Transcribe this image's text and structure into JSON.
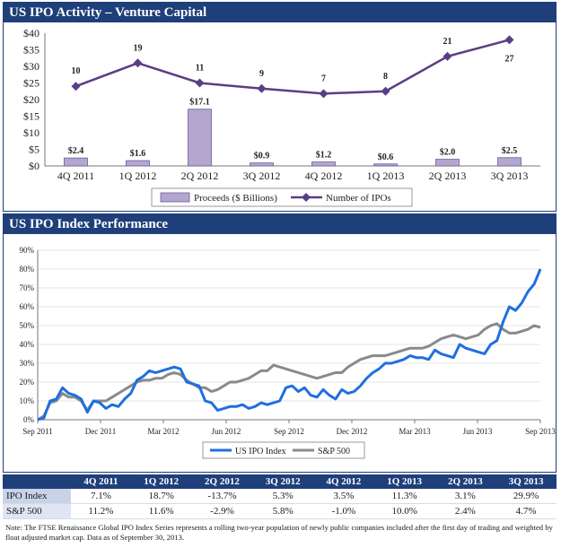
{
  "panels": {
    "activity_title": "US IPO Activity – Venture Capital",
    "index_title": "US IPO Index Performance"
  },
  "chart_data": [
    {
      "type": "bar",
      "categories": [
        "4Q 2011",
        "1Q 2012",
        "2Q 2012",
        "3Q 2012",
        "4Q 2012",
        "1Q 2013",
        "2Q 2013",
        "3Q 2013"
      ],
      "series": [
        {
          "name": "Proceeds ($ Billions)",
          "type": "bar",
          "values": [
            2.4,
            1.6,
            17.1,
            0.9,
            1.2,
            0.6,
            2.0,
            2.5
          ],
          "labels": [
            "$2.4",
            "$1.6",
            "$17.1",
            "$0.9",
            "$1.2",
            "$0.6",
            "$2.0",
            "$2.5"
          ]
        },
        {
          "name": "Number of IPOs",
          "type": "line",
          "values": [
            10,
            19,
            11,
            9,
            7,
            8,
            21,
            27
          ]
        }
      ],
      "line_plot_values": [
        24,
        31,
        25,
        23.3,
        21.8,
        22.5,
        33,
        38
      ],
      "yticks": [
        "$0",
        "$5",
        "$10",
        "$15",
        "$20",
        "$25",
        "$30",
        "$35",
        "$40"
      ],
      "ylim": [
        0,
        40
      ],
      "colors": {
        "bar": "#b3a6cf",
        "bar_stroke": "#6c5d96",
        "line": "#5a3e85"
      }
    },
    {
      "type": "line",
      "xticks": [
        "Sep 2011",
        "Dec 2011",
        "Mar 2012",
        "Jun 2012",
        "Sep 2012",
        "Dec 2012",
        "Mar 2013",
        "Jun 2013",
        "Sep 2013"
      ],
      "yticks": [
        "0%",
        "10%",
        "20%",
        "30%",
        "40%",
        "50%",
        "60%",
        "70%",
        "80%",
        "90%"
      ],
      "ylim": [
        0,
        90
      ],
      "series": [
        {
          "name": "US IPO Index",
          "color": "#1f6fe0",
          "values": [
            0,
            1,
            10,
            11,
            17,
            14,
            13,
            11,
            4,
            10,
            9,
            6,
            8,
            7,
            11,
            14,
            21,
            23,
            26,
            25,
            26,
            27,
            28,
            27,
            20,
            19,
            18,
            10,
            9,
            5,
            6,
            7,
            7,
            8,
            6,
            7,
            9,
            8,
            9,
            10,
            17,
            18,
            15,
            17,
            13,
            12,
            16,
            13,
            11,
            16,
            14,
            15,
            18,
            22,
            25,
            27,
            30,
            30,
            31,
            32,
            34,
            33,
            33,
            32,
            37,
            35,
            34,
            33,
            40,
            38,
            37,
            36,
            35,
            40,
            42,
            52,
            60,
            58,
            62,
            68,
            72,
            80
          ]
        },
        {
          "name": "S&P 500",
          "color": "#8a8a8a",
          "values": [
            0,
            2,
            9,
            10,
            14,
            12,
            12,
            10,
            5,
            10,
            10,
            10,
            12,
            14,
            16,
            18,
            20,
            21,
            21,
            22,
            22,
            24,
            25,
            24,
            21,
            19,
            17,
            17,
            15,
            16,
            18,
            20,
            20,
            21,
            22,
            24,
            26,
            26,
            29,
            28,
            27,
            26,
            25,
            24,
            23,
            22,
            23,
            24,
            25,
            25,
            28,
            30,
            32,
            33,
            34,
            34,
            34,
            35,
            36,
            37,
            38,
            38,
            38,
            39,
            41,
            43,
            44,
            45,
            44,
            43,
            44,
            45,
            48,
            50,
            51,
            48,
            46,
            46,
            47,
            48,
            50,
            49
          ]
        }
      ]
    }
  ],
  "table": {
    "headers": [
      "",
      "4Q 2011",
      "1Q 2012",
      "2Q 2012",
      "3Q 2012",
      "4Q 2012",
      "1Q 2013",
      "2Q 2013",
      "3Q 2013"
    ],
    "rows": [
      {
        "label": "IPO Index",
        "values": [
          "7.1%",
          "18.7%",
          "-13.7%",
          "5.3%",
          "3.5%",
          "11.3%",
          "3.1%",
          "29.9%"
        ]
      },
      {
        "label": "S&P 500",
        "values": [
          "11.2%",
          "11.6%",
          "-2.9%",
          "5.8%",
          "-1.0%",
          "10.0%",
          "2.4%",
          "4.7%"
        ]
      }
    ]
  },
  "note": "Note: The FTSE Renaissance Global IPO Index Series represents a rolling two-year population of newly public companies included after the first day of trading and weighted by float adjusted market cap. Data as of September 30, 2013."
}
